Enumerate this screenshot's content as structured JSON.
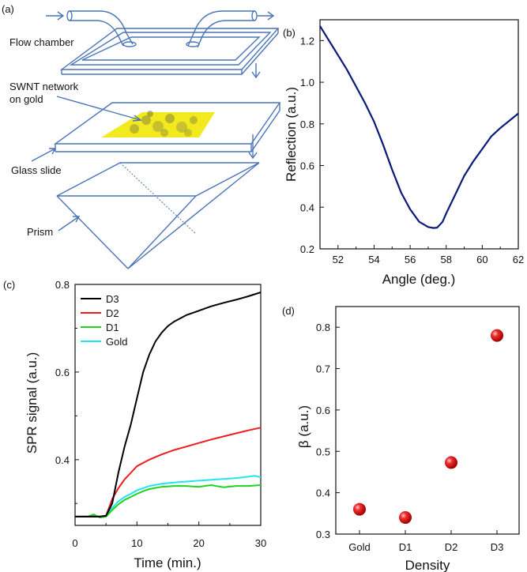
{
  "panels": {
    "a": "(a)",
    "b": "(b)",
    "c": "(c)",
    "d": "(d)"
  },
  "schematic": {
    "flow_chamber": "Flow chamber",
    "swnt_line1": "SWNT network",
    "swnt_line2": "on gold",
    "glass_slide": "Glass slide",
    "prism": "Prism"
  },
  "colors": {
    "schematic_line": "#4a74b8",
    "gold_film": "#f2ea1e",
    "reflection_curve": "#0b1a7a",
    "D3": "#000000",
    "D2": "#ee1c1c",
    "D1": "#1fd41f",
    "Gold": "#22e6ee",
    "marker": "#e01010"
  },
  "chart_data": [
    {
      "id": "b",
      "type": "line",
      "title": "",
      "xlabel": "Angle (deg.)",
      "ylabel": "Reflection (a.u.)",
      "xlim": [
        51,
        62
      ],
      "ylim": [
        0.2,
        1.3
      ],
      "xticks": [
        52,
        54,
        56,
        58,
        60,
        62
      ],
      "yticks": [
        0.2,
        0.4,
        0.6,
        0.8,
        1.0,
        1.2
      ],
      "ytick_labels": [
        "0.2",
        "0.4",
        "0.6",
        "0.8",
        "1.0",
        "1.2"
      ],
      "series": [
        {
          "x": [
            51,
            51.5,
            52,
            52.5,
            53,
            53.5,
            54,
            54.5,
            55,
            55.5,
            56,
            56.5,
            57,
            57.3,
            57.5,
            57.8,
            58,
            58.5,
            59,
            59.5,
            60,
            60.5,
            61,
            61.5,
            62
          ],
          "y": [
            1.27,
            1.2,
            1.13,
            1.06,
            0.98,
            0.9,
            0.81,
            0.7,
            0.58,
            0.47,
            0.39,
            0.33,
            0.305,
            0.3,
            0.302,
            0.33,
            0.37,
            0.46,
            0.55,
            0.62,
            0.68,
            0.74,
            0.78,
            0.815,
            0.85
          ]
        }
      ]
    },
    {
      "id": "c",
      "type": "line",
      "title": "",
      "xlabel": "Time (min.)",
      "ylabel": "SPR signal (a.u.)",
      "xlim": [
        0,
        30
      ],
      "ylim": [
        0.25,
        0.8
      ],
      "xticks": [
        0,
        10,
        20,
        30
      ],
      "yticks": [
        0.4,
        0.6,
        0.8
      ],
      "ytick_labels": [
        "0.4",
        "0.6",
        "0.8"
      ],
      "legend": "top-left",
      "series": [
        {
          "name": "D3",
          "x": [
            0,
            2,
            4,
            5,
            6,
            7,
            8,
            9,
            10,
            11,
            12,
            13,
            14,
            15,
            16,
            18,
            20,
            22,
            24,
            26,
            28,
            30
          ],
          "y": [
            0.27,
            0.27,
            0.27,
            0.272,
            0.3,
            0.37,
            0.43,
            0.48,
            0.54,
            0.6,
            0.64,
            0.67,
            0.69,
            0.705,
            0.715,
            0.73,
            0.74,
            0.75,
            0.758,
            0.765,
            0.773,
            0.782
          ]
        },
        {
          "name": "D2",
          "x": [
            0,
            2,
            4,
            5,
            6,
            7,
            8,
            9,
            10,
            12,
            14,
            16,
            18,
            20,
            22,
            24,
            26,
            28,
            30
          ],
          "y": [
            0.27,
            0.27,
            0.27,
            0.272,
            0.31,
            0.335,
            0.355,
            0.37,
            0.385,
            0.4,
            0.412,
            0.422,
            0.43,
            0.438,
            0.446,
            0.453,
            0.46,
            0.467,
            0.473
          ]
        },
        {
          "name": "D1",
          "x": [
            0,
            2,
            3,
            4,
            5,
            6,
            7,
            8,
            9,
            10,
            11,
            12,
            14,
            16,
            18,
            20,
            22,
            24,
            26,
            28,
            30
          ],
          "y": [
            0.27,
            0.27,
            0.275,
            0.268,
            0.27,
            0.285,
            0.298,
            0.308,
            0.315,
            0.322,
            0.328,
            0.333,
            0.338,
            0.34,
            0.34,
            0.338,
            0.342,
            0.337,
            0.34,
            0.34,
            0.342
          ]
        },
        {
          "name": "Gold",
          "x": [
            0,
            2,
            3,
            4,
            5,
            6,
            7,
            8,
            9,
            10,
            11,
            12,
            14,
            16,
            18,
            20,
            22,
            24,
            26,
            28,
            29,
            30
          ],
          "y": [
            0.27,
            0.27,
            0.273,
            0.27,
            0.272,
            0.29,
            0.305,
            0.315,
            0.322,
            0.33,
            0.335,
            0.34,
            0.345,
            0.348,
            0.35,
            0.352,
            0.354,
            0.356,
            0.358,
            0.361,
            0.363,
            0.36
          ]
        }
      ]
    },
    {
      "id": "d",
      "type": "scatter",
      "title": "",
      "xlabel": "Density",
      "ylabel": "β (a.u.)",
      "categories": [
        "Gold",
        "D1",
        "D2",
        "D3"
      ],
      "ylim": [
        0.3,
        0.85
      ],
      "yticks": [
        0.3,
        0.4,
        0.5,
        0.6,
        0.7,
        0.8
      ],
      "ytick_labels": [
        "0.3",
        "0.4",
        "0.5",
        "0.6",
        "0.7",
        "0.8"
      ],
      "values": [
        0.36,
        0.34,
        0.473,
        0.78
      ]
    }
  ]
}
